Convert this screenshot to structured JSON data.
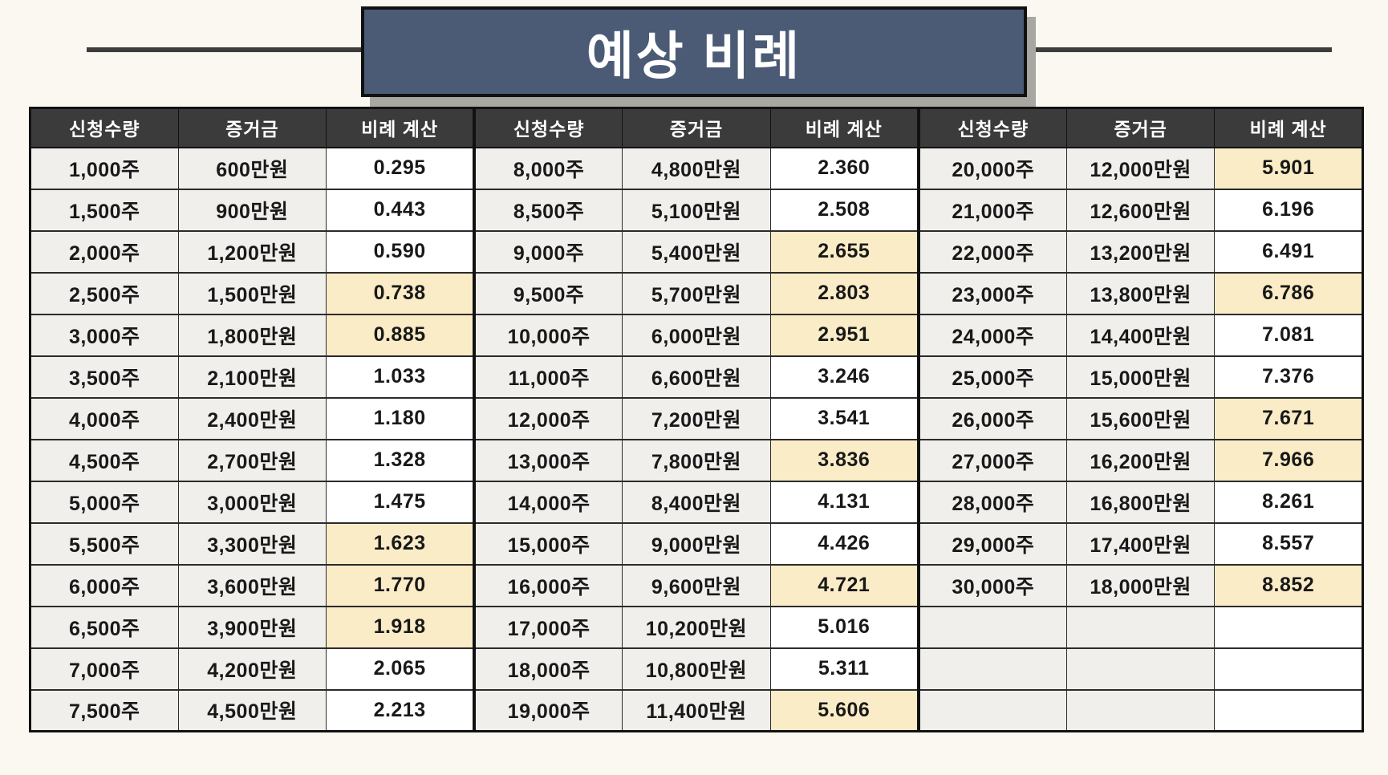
{
  "title": "예상 비례",
  "colors": {
    "page_bg": "#faf8f1",
    "title_box_bg": "#4b5b76",
    "title_text": "#ffffff",
    "rule": "#3d3d3d",
    "header_bg": "#3b3b3b",
    "header_text": "#ffffff",
    "cell_gray_bg": "#f0efec",
    "cell_white_bg": "#ffffff",
    "cell_highlight_bg": "#faecc6",
    "border_dark": "#111111",
    "border_cell": "#2b2b2b",
    "text": "#191919",
    "shadow": "#a9a7a2"
  },
  "chart_data": {
    "type": "table",
    "title": "예상 비례",
    "column_headers": [
      "신청수량",
      "증거금",
      "비례 계산"
    ],
    "column_header_repeat": 3,
    "rows_per_group": 14,
    "groups": [
      {
        "rows": [
          {
            "qty": "1,000주",
            "deposit": "600만원",
            "ratio": "0.295",
            "highlight": false
          },
          {
            "qty": "1,500주",
            "deposit": "900만원",
            "ratio": "0.443",
            "highlight": false
          },
          {
            "qty": "2,000주",
            "deposit": "1,200만원",
            "ratio": "0.590",
            "highlight": false
          },
          {
            "qty": "2,500주",
            "deposit": "1,500만원",
            "ratio": "0.738",
            "highlight": true
          },
          {
            "qty": "3,000주",
            "deposit": "1,800만원",
            "ratio": "0.885",
            "highlight": true
          },
          {
            "qty": "3,500주",
            "deposit": "2,100만원",
            "ratio": "1.033",
            "highlight": false
          },
          {
            "qty": "4,000주",
            "deposit": "2,400만원",
            "ratio": "1.180",
            "highlight": false
          },
          {
            "qty": "4,500주",
            "deposit": "2,700만원",
            "ratio": "1.328",
            "highlight": false
          },
          {
            "qty": "5,000주",
            "deposit": "3,000만원",
            "ratio": "1.475",
            "highlight": false
          },
          {
            "qty": "5,500주",
            "deposit": "3,300만원",
            "ratio": "1.623",
            "highlight": true
          },
          {
            "qty": "6,000주",
            "deposit": "3,600만원",
            "ratio": "1.770",
            "highlight": true
          },
          {
            "qty": "6,500주",
            "deposit": "3,900만원",
            "ratio": "1.918",
            "highlight": true
          },
          {
            "qty": "7,000주",
            "deposit": "4,200만원",
            "ratio": "2.065",
            "highlight": false
          },
          {
            "qty": "7,500주",
            "deposit": "4,500만원",
            "ratio": "2.213",
            "highlight": false
          }
        ]
      },
      {
        "rows": [
          {
            "qty": "8,000주",
            "deposit": "4,800만원",
            "ratio": "2.360",
            "highlight": false
          },
          {
            "qty": "8,500주",
            "deposit": "5,100만원",
            "ratio": "2.508",
            "highlight": false
          },
          {
            "qty": "9,000주",
            "deposit": "5,400만원",
            "ratio": "2.655",
            "highlight": true
          },
          {
            "qty": "9,500주",
            "deposit": "5,700만원",
            "ratio": "2.803",
            "highlight": true
          },
          {
            "qty": "10,000주",
            "deposit": "6,000만원",
            "ratio": "2.951",
            "highlight": true
          },
          {
            "qty": "11,000주",
            "deposit": "6,600만원",
            "ratio": "3.246",
            "highlight": false
          },
          {
            "qty": "12,000주",
            "deposit": "7,200만원",
            "ratio": "3.541",
            "highlight": false
          },
          {
            "qty": "13,000주",
            "deposit": "7,800만원",
            "ratio": "3.836",
            "highlight": true
          },
          {
            "qty": "14,000주",
            "deposit": "8,400만원",
            "ratio": "4.131",
            "highlight": false
          },
          {
            "qty": "15,000주",
            "deposit": "9,000만원",
            "ratio": "4.426",
            "highlight": false
          },
          {
            "qty": "16,000주",
            "deposit": "9,600만원",
            "ratio": "4.721",
            "highlight": true
          },
          {
            "qty": "17,000주",
            "deposit": "10,200만원",
            "ratio": "5.016",
            "highlight": false
          },
          {
            "qty": "18,000주",
            "deposit": "10,800만원",
            "ratio": "5.311",
            "highlight": false
          },
          {
            "qty": "19,000주",
            "deposit": "11,400만원",
            "ratio": "5.606",
            "highlight": true
          }
        ]
      },
      {
        "rows": [
          {
            "qty": "20,000주",
            "deposit": "12,000만원",
            "ratio": "5.901",
            "highlight": true
          },
          {
            "qty": "21,000주",
            "deposit": "12,600만원",
            "ratio": "6.196",
            "highlight": false
          },
          {
            "qty": "22,000주",
            "deposit": "13,200만원",
            "ratio": "6.491",
            "highlight": false
          },
          {
            "qty": "23,000주",
            "deposit": "13,800만원",
            "ratio": "6.786",
            "highlight": true
          },
          {
            "qty": "24,000주",
            "deposit": "14,400만원",
            "ratio": "7.081",
            "highlight": false
          },
          {
            "qty": "25,000주",
            "deposit": "15,000만원",
            "ratio": "7.376",
            "highlight": false
          },
          {
            "qty": "26,000주",
            "deposit": "15,600만원",
            "ratio": "7.671",
            "highlight": true
          },
          {
            "qty": "27,000주",
            "deposit": "16,200만원",
            "ratio": "7.966",
            "highlight": true
          },
          {
            "qty": "28,000주",
            "deposit": "16,800만원",
            "ratio": "8.261",
            "highlight": false
          },
          {
            "qty": "29,000주",
            "deposit": "17,400만원",
            "ratio": "8.557",
            "highlight": false
          },
          {
            "qty": "30,000주",
            "deposit": "18,000만원",
            "ratio": "8.852",
            "highlight": true
          },
          {
            "qty": "",
            "deposit": "",
            "ratio": "",
            "highlight": false
          },
          {
            "qty": "",
            "deposit": "",
            "ratio": "",
            "highlight": false
          },
          {
            "qty": "",
            "deposit": "",
            "ratio": "",
            "highlight": false
          }
        ]
      }
    ]
  }
}
